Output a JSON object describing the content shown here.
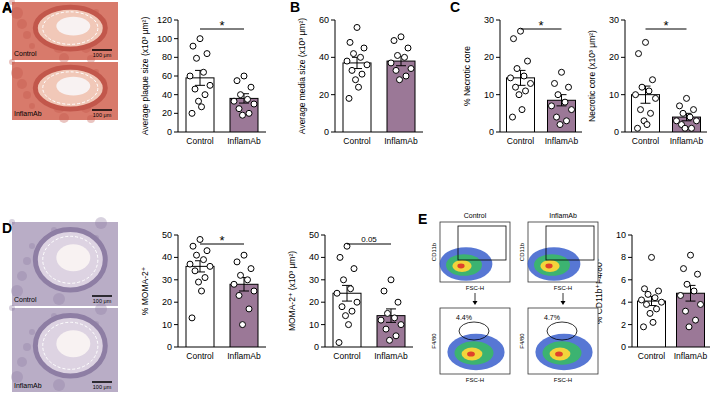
{
  "chart_data": [
    {
      "type": "bar",
      "panel_label": "A",
      "ylabel": "Average plaque size (x10³ μm²)",
      "categories": [
        "Control",
        "InflamAb"
      ],
      "values": [
        58,
        36
      ],
      "errors": [
        8,
        5
      ],
      "points": [
        [
          100,
          92,
          84,
          79,
          64,
          60,
          50,
          46,
          40,
          33,
          27,
          20
        ],
        [
          60,
          55,
          48,
          40,
          35,
          33,
          30,
          25,
          20,
          18
        ]
      ],
      "colors": [
        "#ffffff",
        "#9b7897"
      ],
      "ylim": [
        0,
        120
      ],
      "yticks": [
        0,
        20,
        40,
        60,
        80,
        100,
        120
      ],
      "annotation": "*"
    },
    {
      "type": "bar",
      "panel_label": "B",
      "ylabel": "Average media size (x10³ μm²)",
      "categories": [
        "Control",
        "InflamAb"
      ],
      "values": [
        37,
        38
      ],
      "errors": [
        3,
        2.5
      ],
      "points": [
        [
          56,
          48,
          45,
          42,
          40,
          38,
          36,
          33,
          31,
          28,
          24,
          18
        ],
        [
          51,
          49,
          45,
          41,
          40,
          37,
          34,
          33,
          30,
          28
        ]
      ],
      "colors": [
        "#ffffff",
        "#9b7897"
      ],
      "ylim": [
        0,
        60
      ],
      "yticks": [
        0,
        20,
        40,
        60
      ]
    },
    {
      "type": "bar",
      "panel_label": "C",
      "ylabel": "% Necrotic core",
      "categories": [
        "Control",
        "InflamAb"
      ],
      "values": [
        14.5,
        8.5
      ],
      "errors": [
        2,
        1.5
      ],
      "points": [
        [
          27,
          25,
          19,
          17,
          15,
          14.5,
          13,
          12,
          11,
          10,
          6,
          4
        ],
        [
          16,
          13,
          12,
          10,
          8,
          7,
          6,
          4,
          3,
          2
        ]
      ],
      "colors": [
        "#ffffff",
        "#9b7897"
      ],
      "ylim": [
        0,
        30
      ],
      "yticks": [
        0,
        10,
        20,
        30
      ],
      "annotation": "*"
    },
    {
      "type": "bar",
      "ylabel": "Necrotic core (x10³ μm²)",
      "categories": [
        "Control",
        "InflamAb"
      ],
      "values": [
        10,
        4
      ],
      "errors": [
        2.3,
        1
      ],
      "points": [
        [
          24,
          21,
          14,
          12,
          11,
          10,
          9,
          6,
          5,
          3,
          2,
          1
        ],
        [
          9,
          7,
          6,
          5,
          4,
          3,
          3,
          2,
          1,
          1
        ]
      ],
      "colors": [
        "#ffffff",
        "#9b7897"
      ],
      "ylim": [
        0,
        30
      ],
      "yticks": [
        0,
        10,
        20,
        30
      ],
      "annotation": "*"
    },
    {
      "type": "bar",
      "ylabel": "% MOMA-2⁺",
      "categories": [
        "Control",
        "InflamAb"
      ],
      "values": [
        36,
        28
      ],
      "errors": [
        2.5,
        3
      ],
      "points": [
        [
          48,
          45,
          43,
          41,
          39,
          37,
          36,
          34,
          31,
          29,
          25,
          13
        ],
        [
          41,
          38,
          35,
          32,
          30,
          28,
          25,
          23,
          17,
          10
        ]
      ],
      "colors": [
        "#ffffff",
        "#9b7897"
      ],
      "ylim": [
        0,
        50
      ],
      "yticks": [
        0,
        10,
        20,
        30,
        40,
        50
      ],
      "annotation": "*"
    },
    {
      "type": "bar",
      "ylabel": "MOMA-2⁺ (x10³ μm²)",
      "categories": [
        "Control",
        "InflamAb"
      ],
      "values": [
        24,
        14
      ],
      "errors": [
        3.5,
        3
      ],
      "points": [
        [
          45,
          40,
          35,
          30,
          26,
          24,
          20,
          18,
          16,
          14,
          10,
          2
        ],
        [
          30,
          25,
          20,
          15,
          13,
          12,
          10,
          8,
          5,
          3
        ]
      ],
      "colors": [
        "#ffffff",
        "#9b7897"
      ],
      "ylim": [
        0,
        50
      ],
      "yticks": [
        0,
        10,
        20,
        30,
        40,
        50
      ],
      "annotation": "0.05"
    },
    {
      "type": "bar",
      "ylabel": "% CD11b⁺F4/80⁺",
      "categories": [
        "Control",
        "InflamAb"
      ],
      "values": [
        4.1,
        4.8
      ],
      "errors": [
        0.4,
        0.7
      ],
      "points": [
        [
          8,
          5.2,
          5,
          4.7,
          4.4,
          4.2,
          4,
          3.8,
          3.4,
          3,
          2.2,
          1.8
        ],
        [
          8.2,
          7,
          6.5,
          5.6,
          5,
          4.6,
          3.8,
          3.2,
          2.4,
          1.8
        ]
      ],
      "colors": [
        "#ffffff",
        "#9b7897"
      ],
      "ylim": [
        0,
        10
      ],
      "yticks": [
        0,
        2,
        4,
        6,
        8,
        10
      ]
    }
  ],
  "images": [
    {
      "panel_label": "A",
      "labels": [
        "Control",
        "InflamAb"
      ],
      "scale_bar": "100 μm"
    },
    {
      "panel_label": "D",
      "labels": [
        "Control",
        "InflamAb"
      ],
      "scale_bar": "100 μm"
    }
  ],
  "flow_cytometry": {
    "panel_label": "E",
    "x_axis": "FSC-H",
    "y_axes": [
      "CD11b",
      "F4/80"
    ],
    "groups": [
      {
        "title": "Control",
        "gate_percent": "4.4%"
      },
      {
        "title": "InflamAb",
        "gate_percent": "4.7%"
      }
    ]
  }
}
